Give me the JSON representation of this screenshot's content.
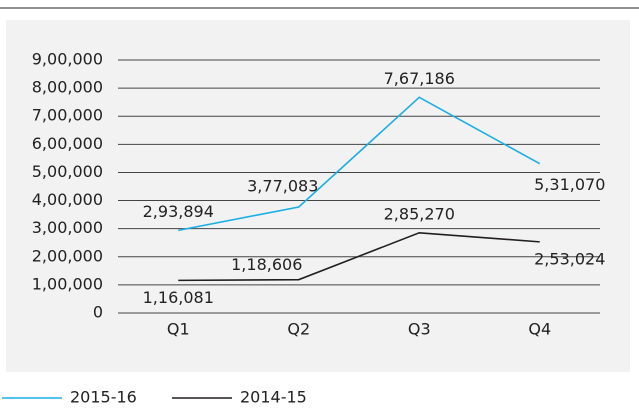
{
  "chart_data": {
    "type": "line",
    "categories": [
      "Q1",
      "Q2",
      "Q3",
      "Q4"
    ],
    "series": [
      {
        "name": "2015-16",
        "color": "#1aaee5",
        "values": [
          293894,
          377083,
          767186,
          531070
        ],
        "value_labels": [
          "2,93,894",
          "3,77,083",
          "7,67,186",
          "5,31,070"
        ]
      },
      {
        "name": "2014-15",
        "color": "#231f20",
        "values": [
          116081,
          118606,
          285270,
          253024
        ],
        "value_labels": [
          "1,16,081",
          "1,18,606",
          "2,85,270",
          "2,53,024"
        ]
      }
    ],
    "ylim": [
      0,
      900000
    ],
    "yticks": [
      0,
      {
        "value": 100000,
        "label": "1,00,000"
      },
      {
        "value": 200000,
        "label": "2,00,000"
      },
      {
        "value": 300000,
        "label": "3,00,000"
      },
      {
        "value": 400000,
        "label": "4,00,000"
      },
      {
        "value": 500000,
        "label": "5,00,000"
      },
      {
        "value": 600000,
        "label": "6,00,000"
      },
      {
        "value": 700000,
        "label": "7,00,000"
      },
      {
        "value": 800000,
        "label": "8,00,000"
      },
      {
        "value": 900000,
        "label": "9,00,000"
      }
    ],
    "grid": true,
    "legend": "bottom-left"
  }
}
